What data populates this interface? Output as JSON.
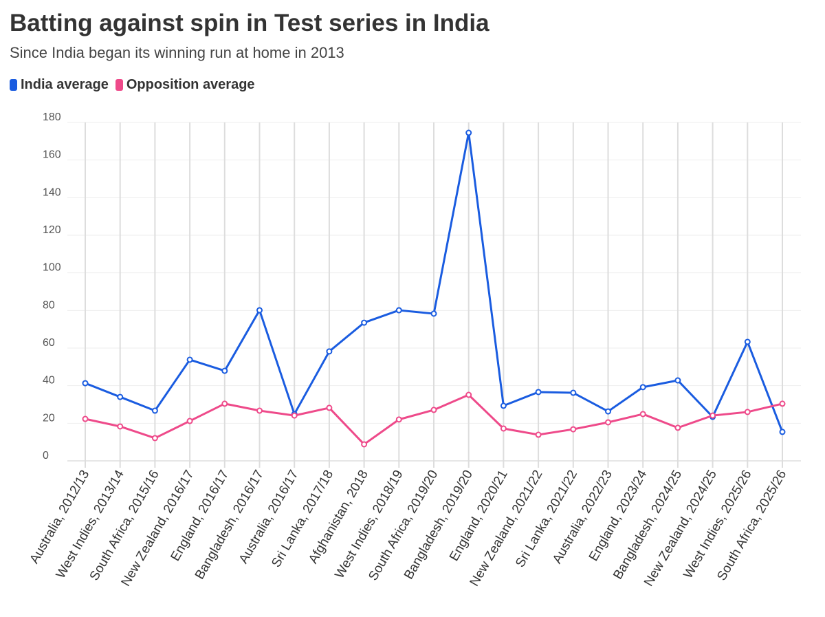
{
  "title": "Batting against spin in Test series in India",
  "subtitle": "Since India began its winning run at home in 2013",
  "chart_data": {
    "type": "line",
    "title": "Batting against spin in Test series in India",
    "subtitle": "Since India began its winning run at home in 2013",
    "xlabel": "",
    "ylabel": "",
    "ylim": [
      0,
      180
    ],
    "yticks": [
      0,
      20,
      40,
      60,
      80,
      100,
      120,
      140,
      160,
      180
    ],
    "grid": true,
    "legend_position": "top-left",
    "categories": [
      "Australia, 2012/13",
      "West Indies, 2013/14",
      "South Africa, 2015/16",
      "New Zealand, 2016/17",
      "England, 2016/17",
      "Bangladesh, 2016/17",
      "Australia, 2016/17",
      "Sri Lanka, 2017/18",
      "Afghanistan, 2018",
      "West Indies, 2018/19",
      "South Africa, 2019/20",
      "Bangladesh, 2019/20",
      "England, 2020/21",
      "New Zealand, 2021/22",
      "Sri Lanka, 2021/22",
      "Australia, 2022/23",
      "England, 2023/24",
      "Bangladesh, 2024/25",
      "New Zealand, 2024/25",
      "West Indies, 2025/26",
      "South Africa, 2025/26"
    ],
    "series": [
      {
        "name": "India average",
        "color": "#1a5ce0",
        "values": [
          41.3,
          34,
          26.7,
          53.8,
          47.9,
          80.1,
          24.9,
          58.2,
          73.5,
          80.1,
          78.3,
          174.5,
          29.3,
          36.6,
          36.2,
          26.3,
          39.2,
          42.8,
          23.4,
          63.3,
          15.4
        ]
      },
      {
        "name": "Opposition average",
        "color": "#ee4a8a",
        "values": [
          22.3,
          18.3,
          12.1,
          21.2,
          30.4,
          26.7,
          24.1,
          28.2,
          8.8,
          22,
          27.1,
          35.1,
          17.2,
          13.9,
          16.8,
          20.5,
          24.9,
          17.6,
          24.1,
          26,
          30.4
        ]
      }
    ]
  }
}
